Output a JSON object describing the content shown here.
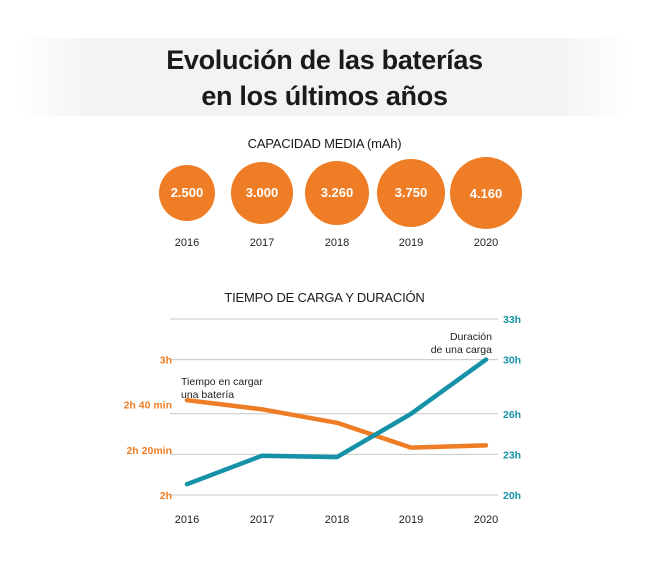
{
  "header": {
    "title_line1": "Evolución de las baterías",
    "title_line2": "en los últimos años"
  },
  "capacity": {
    "title": "CAPACIDAD MEDIA  (mAh)",
    "color": "#ef7d25",
    "items": [
      {
        "year": "2016",
        "label": "2.500",
        "value": 2500
      },
      {
        "year": "2017",
        "label": "3.000",
        "value": 3000
      },
      {
        "year": "2018",
        "label": "3.260",
        "value": 3260
      },
      {
        "year": "2019",
        "label": "3.750",
        "value": 3750
      },
      {
        "year": "2020",
        "label": "4.160",
        "value": 4160
      }
    ]
  },
  "chart_data": [
    {
      "type": "bubble",
      "title": "CAPACIDAD MEDIA  (mAh)",
      "categories": [
        "2016",
        "2017",
        "2018",
        "2019",
        "2020"
      ],
      "values": [
        2500,
        3000,
        3260,
        3750,
        4160
      ]
    },
    {
      "type": "line",
      "title": "TIEMPO DE CARGA Y DURACIÓN",
      "categories": [
        "2016",
        "2017",
        "2018",
        "2019",
        "2020"
      ],
      "grid": true,
      "series": [
        {
          "name": "Tiempo en cargar una batería",
          "axis": "left",
          "color": "#ef7d25",
          "values_minutes": [
            162,
            158,
            152,
            141,
            142
          ]
        },
        {
          "name": "Duración de una carga",
          "axis": "right",
          "color": "#1591a8",
          "values_hours": [
            20.8,
            22.9,
            22.8,
            26.0,
            30.0
          ]
        }
      ],
      "left_axis": {
        "color": "#ef7d25",
        "ticks": [
          {
            "label": "3h",
            "minutes": 180
          },
          {
            "label": "2h 40 min",
            "minutes": 160
          },
          {
            "label": "2h 20min",
            "minutes": 140
          },
          {
            "label": "2h",
            "minutes": 120
          }
        ]
      },
      "right_axis": {
        "color": "#1591a8",
        "ticks": [
          {
            "label": "33h",
            "hours": 33
          },
          {
            "label": "30h",
            "hours": 30
          },
          {
            "label": "26h",
            "hours": 26
          },
          {
            "label": "23h",
            "hours": 23
          },
          {
            "label": "20h",
            "hours": 20
          }
        ]
      },
      "annotations": {
        "left_line1": "Tiempo en cargar",
        "left_line2": "una batería",
        "right_line1": "Duración",
        "right_line2": "de una carga"
      }
    }
  ]
}
